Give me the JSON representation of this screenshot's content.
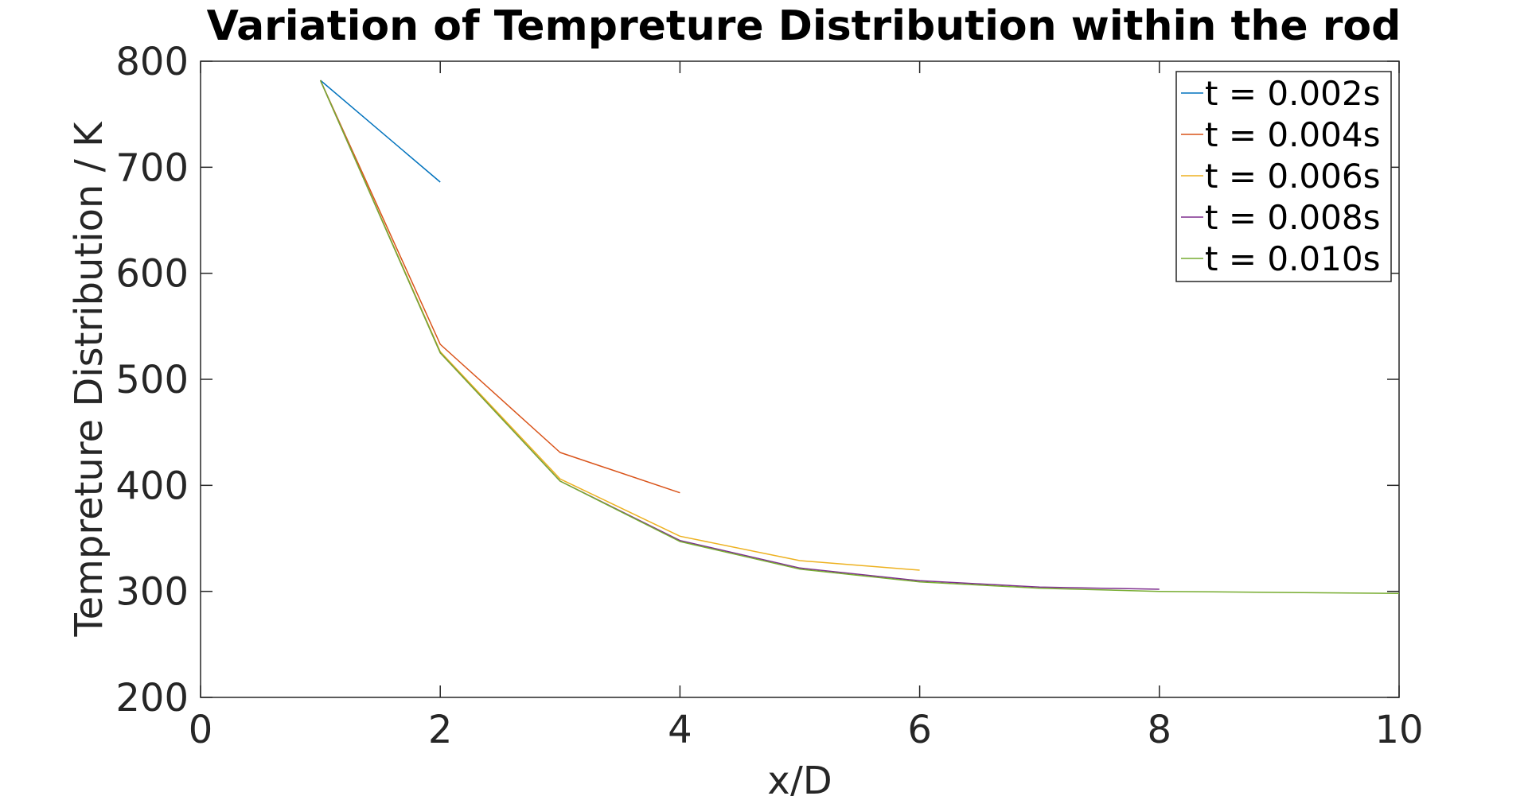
{
  "chart_data": {
    "type": "line",
    "title": "Variation of Tempreture Distribution within the rod",
    "xlabel": "x/D",
    "ylabel": "Tempreture Distribution / K",
    "xlim": [
      0,
      10
    ],
    "ylim": [
      200,
      800
    ],
    "xticks": [
      0,
      2,
      4,
      6,
      8,
      10
    ],
    "yticks": [
      200,
      300,
      400,
      500,
      600,
      700,
      800
    ],
    "grid": false,
    "legend": "top-right",
    "series": [
      {
        "name": "t = 0.002s",
        "color": "#0072BD",
        "x": [
          1,
          2
        ],
        "y": [
          782,
          686
        ]
      },
      {
        "name": "t = 0.004s",
        "color": "#D95319",
        "x": [
          1,
          2,
          3,
          4
        ],
        "y": [
          782,
          533,
          431,
          393
        ]
      },
      {
        "name": "t = 0.006s",
        "color": "#EDB120",
        "x": [
          1,
          2,
          3,
          4,
          5,
          6
        ],
        "y": [
          782,
          526,
          406,
          352,
          329,
          320
        ]
      },
      {
        "name": "t = 0.008s",
        "color": "#7E2F8E",
        "x": [
          1,
          2,
          3,
          4,
          5,
          6,
          7,
          8
        ],
        "y": [
          782,
          525,
          404,
          348,
          322,
          310,
          304,
          302
        ]
      },
      {
        "name": "t = 0.010s",
        "color": "#77AC30",
        "x": [
          1,
          2,
          3,
          4,
          5,
          6,
          7,
          8,
          9,
          10
        ],
        "y": [
          782,
          525,
          404,
          347,
          321,
          309,
          303,
          300,
          299,
          298
        ]
      }
    ]
  }
}
